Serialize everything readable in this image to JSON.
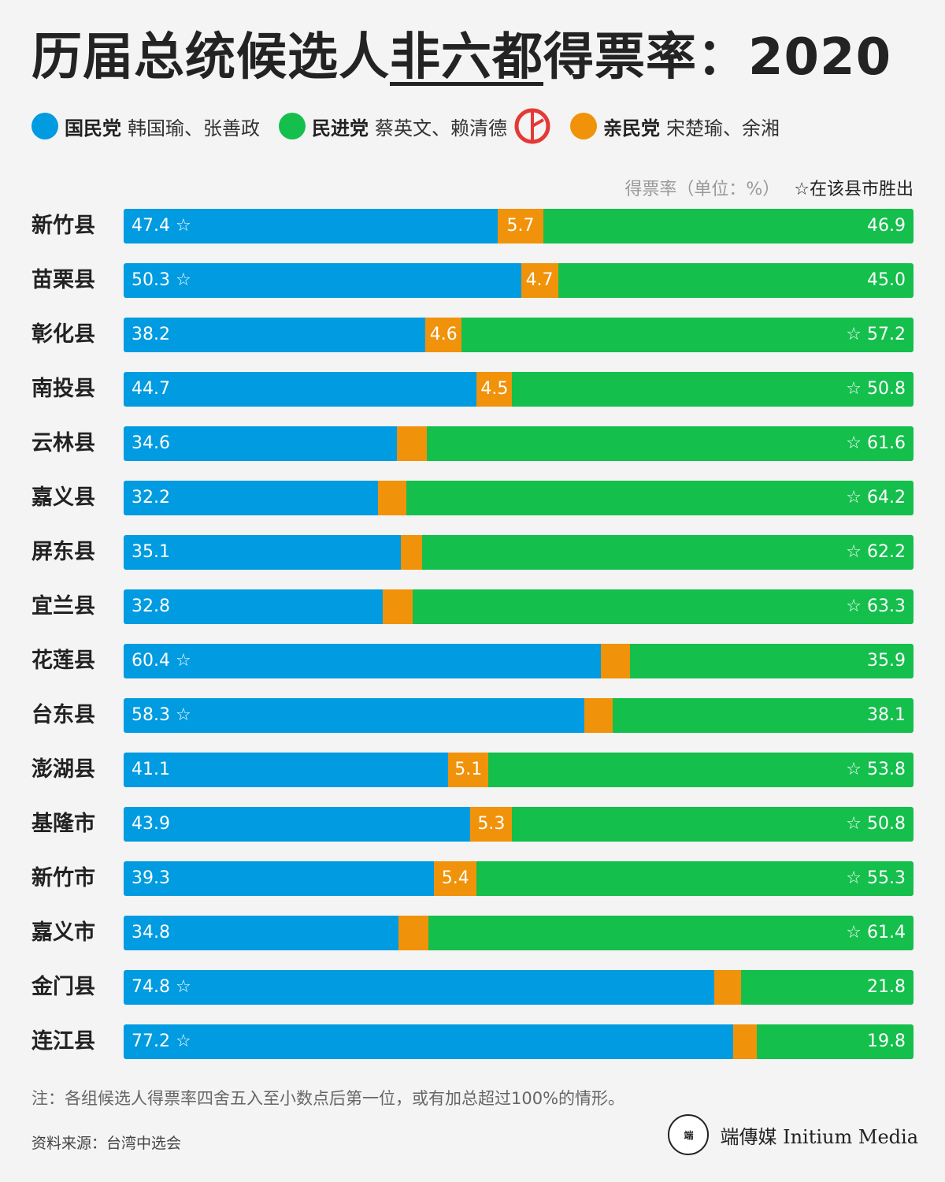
{
  "title": {
    "pre": "历届总统候选人",
    "highlight": "非六都",
    "post": "得票率：2020"
  },
  "legend": [
    {
      "party": "国民党",
      "names": "韩国瑜、张善政",
      "color": "#009be0"
    },
    {
      "party": "民进党",
      "names": "蔡英文、赖清德",
      "color": "#14bf4c",
      "winner_icon": "vote-stamp-icon"
    },
    {
      "party": "亲民党",
      "names": "宋楚瑜、余湘",
      "color": "#f0920a"
    }
  ],
  "unit_note": "得票率（单位：%）",
  "star_note": "☆在该县市胜出",
  "footnote": "注：各组候选人得票率四舍五入至小数点后第一位，或有加总超过100%的情形。",
  "source": "资料来源：台湾中选会",
  "logo": {
    "mark": "端",
    "text": "端傳媒 Initium Media"
  },
  "chart_data": {
    "type": "bar",
    "stacked": true,
    "orientation": "horizontal",
    "categories": [
      "新竹县",
      "苗栗县",
      "彰化县",
      "南投县",
      "云林县",
      "嘉义县",
      "屏东县",
      "宜兰县",
      "花莲县",
      "台东县",
      "澎湖县",
      "基隆市",
      "新竹市",
      "嘉义市",
      "金门县",
      "连江县"
    ],
    "series": [
      {
        "name": "国民党",
        "color": "#009be0",
        "values": [
          47.4,
          50.3,
          38.2,
          44.7,
          34.6,
          32.2,
          35.1,
          32.8,
          60.4,
          58.3,
          41.1,
          43.9,
          39.3,
          34.8,
          74.8,
          77.2
        ]
      },
      {
        "name": "亲民党",
        "color": "#f0920a",
        "values": [
          5.7,
          4.7,
          4.6,
          4.5,
          3.8,
          3.6,
          2.7,
          3.8,
          3.7,
          3.6,
          5.1,
          5.3,
          5.4,
          3.8,
          3.4,
          3.0
        ],
        "labels": [
          "5.7",
          "4.7",
          "4.6",
          "4.5",
          "",
          "",
          "",
          "",
          "",
          "",
          "5.1",
          "5.3",
          "5.4",
          "",
          "",
          ""
        ]
      },
      {
        "name": "民进党",
        "color": "#14bf4c",
        "values": [
          46.9,
          45.0,
          57.2,
          50.8,
          61.6,
          64.2,
          62.2,
          63.3,
          35.9,
          38.1,
          53.8,
          50.8,
          55.3,
          61.4,
          21.8,
          19.8
        ]
      }
    ],
    "winner": [
      "国民党",
      "国民党",
      "民进党",
      "民进党",
      "民进党",
      "民进党",
      "民进党",
      "民进党",
      "国民党",
      "国民党",
      "民进党",
      "民进党",
      "民进党",
      "民进党",
      "国民党",
      "国民党"
    ],
    "star_symbol": "☆"
  }
}
